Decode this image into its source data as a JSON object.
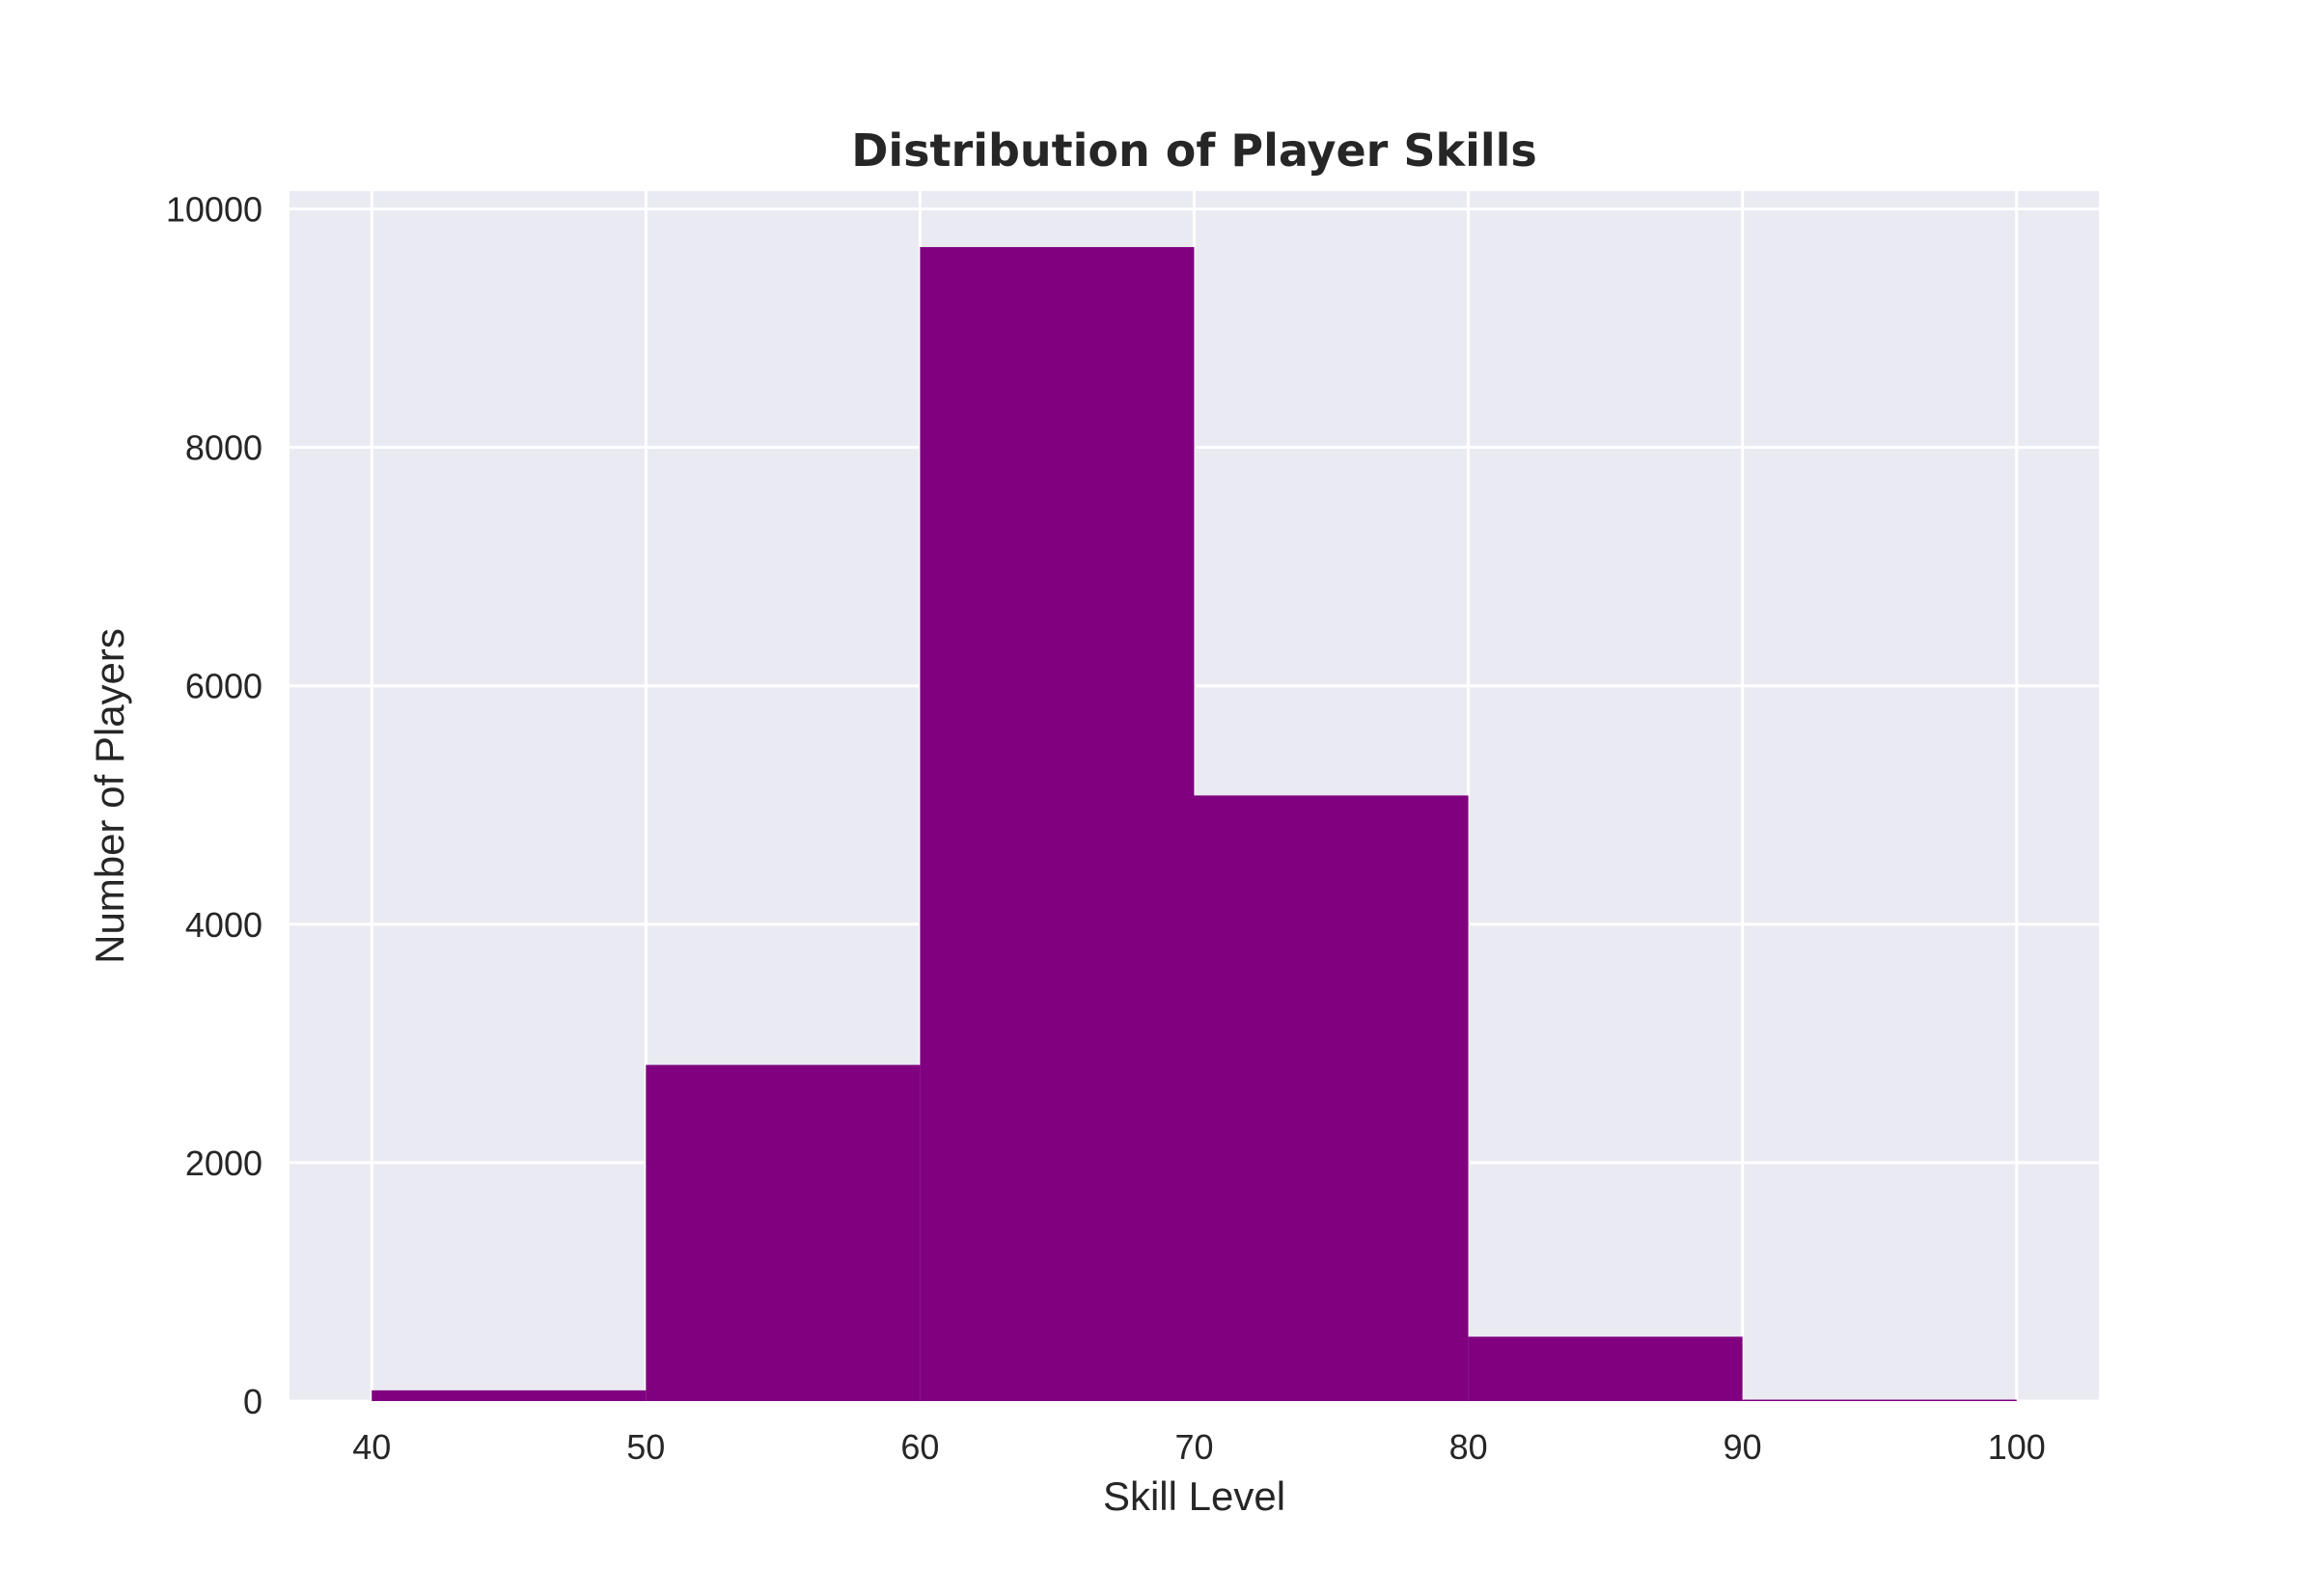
{
  "chart_data": {
    "type": "bar",
    "subtype": "histogram",
    "title": "Distribution of Player Skills",
    "xlabel": "Skill Level",
    "ylabel": "Number of Players",
    "bin_edges": [
      40,
      50,
      60,
      70,
      80,
      90,
      100
    ],
    "values": [
      90,
      2820,
      9680,
      5080,
      540,
      12
    ],
    "xlim": [
      37,
      103
    ],
    "ylim": [
      0,
      10150
    ],
    "x_ticks": [
      "40",
      "50",
      "60",
      "70",
      "80",
      "90",
      "100"
    ],
    "y_ticks": [
      "0",
      "2000",
      "4000",
      "6000",
      "8000",
      "10000"
    ],
    "grid": true,
    "legend": "none",
    "colors": {
      "bar": "#800080",
      "plot_background": "#eaeaf2",
      "grid": "#ffffff",
      "text": "#262626"
    }
  }
}
